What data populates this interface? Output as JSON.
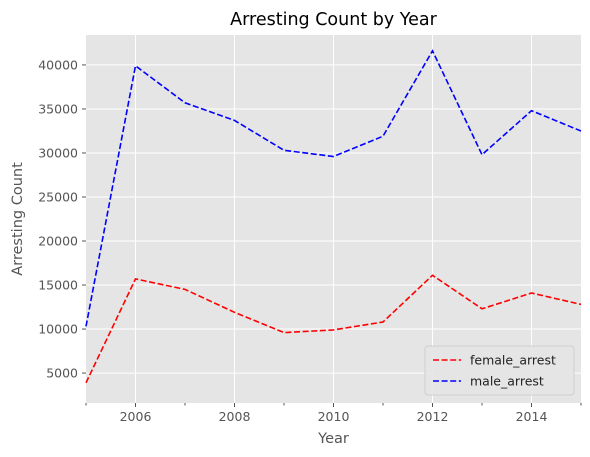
{
  "chart_data": {
    "type": "line",
    "title": "Arresting Count by Year",
    "xlabel": "Year",
    "ylabel": "Arresting Count",
    "x": [
      2005,
      2006,
      2007,
      2008,
      2009,
      2010,
      2011,
      2012,
      2013,
      2014,
      2015
    ],
    "xlim": [
      2005,
      2015
    ],
    "ylim": [
      1600,
      43400
    ],
    "x_ticks": [
      2006,
      2008,
      2010,
      2012,
      2014
    ],
    "x_minor_ticks": [
      2005,
      2007,
      2009,
      2011,
      2013,
      2015
    ],
    "y_ticks": [
      5000,
      10000,
      15000,
      20000,
      25000,
      30000,
      35000,
      40000
    ],
    "grid": true,
    "legend_position": "lower-right",
    "series": [
      {
        "name": "female_arrest",
        "color": "#ff0000",
        "line_style": "dashed",
        "values": [
          3900,
          15700,
          14500,
          11900,
          9600,
          9900,
          10800,
          16100,
          12300,
          14100,
          12800
        ]
      },
      {
        "name": "male_arrest",
        "color": "#0000ff",
        "line_style": "dashed",
        "values": [
          10300,
          39900,
          35700,
          33700,
          30300,
          29600,
          31900,
          41600,
          29800,
          34800,
          32500
        ]
      }
    ]
  }
}
